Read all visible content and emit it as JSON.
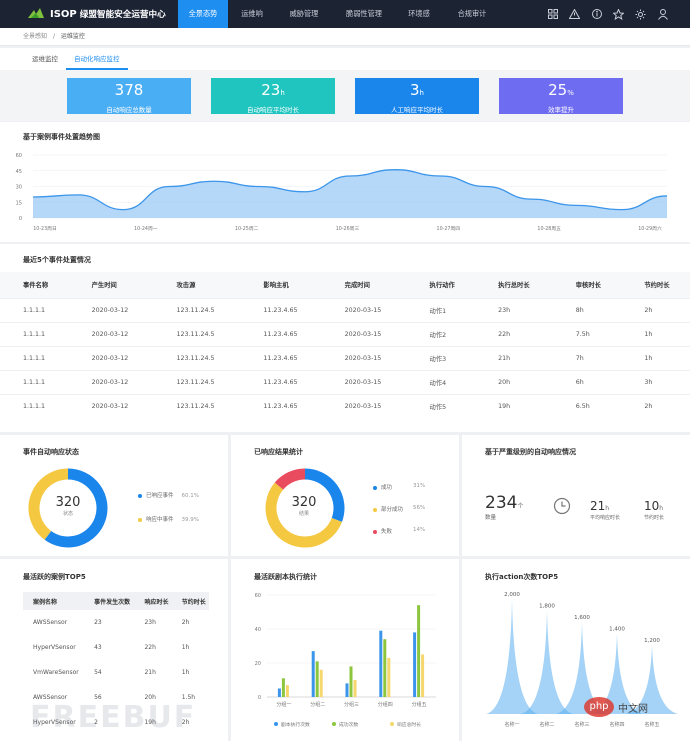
{
  "app": {
    "brand": "ISOP",
    "title": "绿盟智能安全运营中心"
  },
  "nav": [
    "全景态势",
    "运维响应",
    "威胁管理",
    "脆弱性管理",
    "环境感知",
    "合规审计"
  ],
  "top_icons": [
    "grid-icon",
    "alert-icon",
    "info-icon",
    "star-icon",
    "gear-icon",
    "user-icon"
  ],
  "breadcrumb": {
    "root": "全景感知",
    "sep": "/",
    "current": "运维监控"
  },
  "tabs": [
    "运维监控",
    "自动化响应监控"
  ],
  "kpis": [
    {
      "value": "378",
      "unit": "",
      "label": "自动响应总数量",
      "color": "#4aaef5"
    },
    {
      "value": "23",
      "unit": "h",
      "label": "自动响应平均时长",
      "color": "#21c5c0"
    },
    {
      "value": "3",
      "unit": "h",
      "label": "人工响应平均时长",
      "color": "#1a86ec"
    },
    {
      "value": "25",
      "unit": "%",
      "label": "效率提升",
      "color": "#6e6cf0"
    }
  ],
  "trend": {
    "title": "基于案例事件处置趋势图",
    "chart_data": {
      "type": "area",
      "y_ticks": [
        "60",
        "45",
        "30",
        "15",
        "0"
      ],
      "ylim": [
        0,
        60
      ],
      "x_labels": [
        "10-23周日",
        "10-24周一",
        "10-25周二",
        "10-26周三",
        "10-27周四",
        "10-28周五",
        "10-29周六"
      ],
      "values": [
        20,
        22,
        8,
        30,
        35,
        30,
        25,
        40,
        46,
        40,
        30,
        18,
        12,
        8,
        21
      ],
      "color": "#3b95ea"
    }
  },
  "events": {
    "title": "最近5个事件处置情况",
    "headers": [
      "事件名称",
      "产生时间",
      "攻击源",
      "影响主机",
      "完成时间",
      "执行动作",
      "执行总时长",
      "审核时长",
      "节约时长"
    ],
    "rows": [
      [
        "1.1.1.1",
        "2020-03-12",
        "123.11.24.5",
        "11.23.4.65",
        "2020-03-15",
        "动作1",
        "23h",
        "8h",
        "2h"
      ],
      [
        "1.1.1.1",
        "2020-03-12",
        "123.11.24.5",
        "11.23.4.65",
        "2020-03-15",
        "动作2",
        "22h",
        "7.5h",
        "1h"
      ],
      [
        "1.1.1.1",
        "2020-03-12",
        "123.11.24.5",
        "11.23.4.65",
        "2020-03-15",
        "动作3",
        "21h",
        "7h",
        "1h"
      ],
      [
        "1.1.1.1",
        "2020-03-12",
        "123.11.24.5",
        "11.23.4.65",
        "2020-03-15",
        "动作4",
        "20h",
        "6h",
        "3h"
      ],
      [
        "1.1.1.1",
        "2020-03-12",
        "123.11.24.5",
        "11.23.4.65",
        "2020-03-15",
        "动作5",
        "19h",
        "6.5h",
        "2h"
      ]
    ]
  },
  "status": {
    "title": "事件自动响应状态",
    "center_value": "320",
    "center_label": "状态",
    "chart_data": {
      "type": "pie",
      "slices": [
        {
          "name": "已响应事件",
          "pct": "60.1%",
          "value": 60.1,
          "color": "#1a86ec"
        },
        {
          "name": "响应中事件",
          "pct": "39.9%",
          "value": 39.9,
          "color": "#f5c842"
        }
      ]
    }
  },
  "results": {
    "title": "已响应结果统计",
    "center_value": "320",
    "center_label": "结果",
    "chart_data": {
      "type": "pie",
      "slices": [
        {
          "name": "成功",
          "pct": "31%",
          "value": 31,
          "color": "#1a86ec"
        },
        {
          "name": "部分成功",
          "pct": "56%",
          "value": 56,
          "color": "#f5c842"
        },
        {
          "name": "失败",
          "pct": "14%",
          "value": 14,
          "color": "#e94b5f"
        }
      ]
    }
  },
  "severity": {
    "title": "基于严重级别的自动响应情况",
    "count": "234",
    "count_unit": "个",
    "count_label": "数量",
    "avg": "21",
    "avg_unit": "h",
    "avg_label": "平均响应时长",
    "saved": "10",
    "saved_unit": "h",
    "saved_label": "节约时长"
  },
  "top_cases": {
    "title": "最活跃的案例TOP5",
    "headers": [
      "案例名称",
      "事件发生次数",
      "响应时长",
      "节约时长"
    ],
    "rows": [
      [
        "AWSSensor",
        "23",
        "23h",
        "2h"
      ],
      [
        "HyperVSensor",
        "43",
        "22h",
        "1h"
      ],
      [
        "VmWareSensor",
        "54",
        "21h",
        "1h"
      ],
      [
        "AWSSensor",
        "56",
        "20h",
        "1.5h"
      ],
      [
        "HyperVSensor",
        "2",
        "19h",
        "2h"
      ]
    ]
  },
  "scripts": {
    "title": "最活跃剧本执行统计",
    "chart_data": {
      "type": "bar",
      "y_ticks": [
        "60",
        "40",
        "20",
        "0"
      ],
      "ylim": [
        0,
        60
      ],
      "categories": [
        "分组一",
        "分组二",
        "分组三",
        "分组四",
        "分组五"
      ],
      "series": [
        {
          "name": "剧本执行次数",
          "color": "#3b95ea",
          "values": [
            5,
            27,
            8,
            39,
            38
          ]
        },
        {
          "name": "成功次数",
          "color": "#8cc63f",
          "values": [
            11,
            21,
            18,
            34,
            54
          ]
        },
        {
          "name": "响应总时长",
          "color": "#f5d76e",
          "values": [
            7,
            16,
            10,
            23,
            25
          ]
        }
      ]
    }
  },
  "actions": {
    "title": "执行action次数TOP5",
    "chart_data": {
      "type": "bar",
      "categories": [
        "名称一",
        "名称二",
        "名称三",
        "名称四",
        "名称五"
      ],
      "values": [
        2000,
        1800,
        1600,
        1400,
        1200
      ],
      "value_labels": [
        "2,000",
        "1,800",
        "1,600",
        "1,400",
        "1,200"
      ],
      "color": "#5aaef0"
    }
  },
  "watermarks": {
    "freebuf": "FREEBUF",
    "php": "php",
    "php_cn": "中文网"
  }
}
